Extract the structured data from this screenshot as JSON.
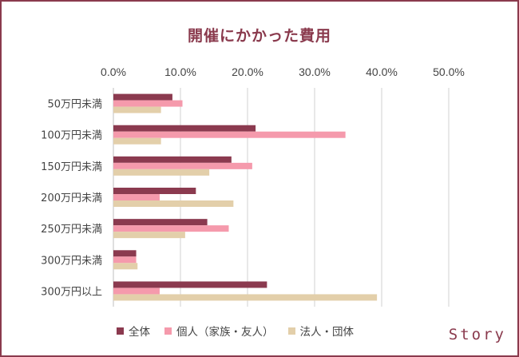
{
  "brand": "Story",
  "colors": {
    "series": [
      "#8b3a4f",
      "#f59aac",
      "#e3cfaa"
    ],
    "grid": "#d0d0d0",
    "accent": "#8a3a4d"
  },
  "chart_data": {
    "type": "bar",
    "orientation": "horizontal",
    "title": "開催にかかった費用",
    "xlabel": "",
    "ylabel": "",
    "xlim": [
      0,
      50
    ],
    "x_ticks": [
      "0.0%",
      "10.0%",
      "20.0%",
      "30.0%",
      "40.0%",
      "50.0%"
    ],
    "grid": true,
    "legend_position": "bottom",
    "categories": [
      "50万円未満",
      "100万円未満",
      "150万円未満",
      "200万円未満",
      "250万円未満",
      "300万円未満",
      "300万円以上"
    ],
    "series": [
      {
        "name": "全体",
        "values": [
          8.8,
          21.2,
          17.6,
          12.3,
          14.0,
          3.4,
          22.9
        ]
      },
      {
        "name": "個人（家族・友人）",
        "values": [
          10.3,
          34.6,
          20.7,
          6.9,
          17.2,
          3.4,
          6.9
        ]
      },
      {
        "name": "法人・団体",
        "values": [
          7.1,
          7.1,
          14.3,
          17.9,
          10.7,
          3.6,
          39.3
        ]
      }
    ]
  }
}
